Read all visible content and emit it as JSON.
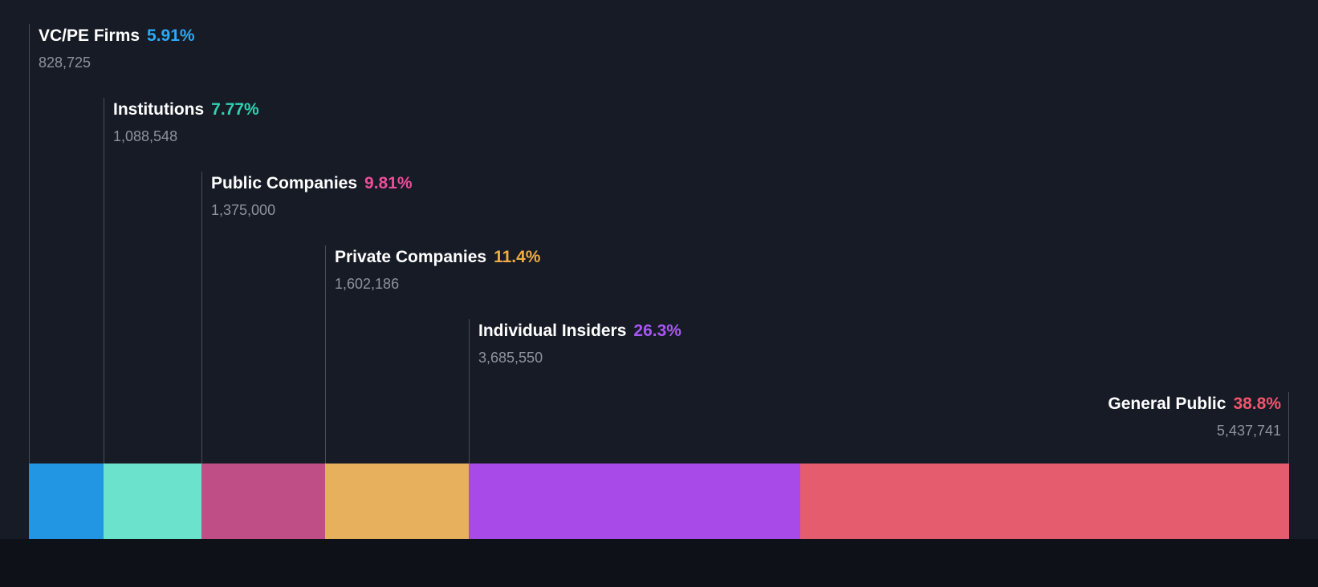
{
  "background": "#161B25",
  "chart_data": {
    "type": "bar",
    "orientation": "horizontal-stacked",
    "legend": "none",
    "items": [
      {
        "label": "VC/PE Firms",
        "pct": 5.91,
        "pct_label": "5.91%",
        "value": 828725,
        "value_label": "828,725",
        "color": "#2296E3",
        "pct_color": "#2DA9F6"
      },
      {
        "label": "Institutions",
        "pct": 7.77,
        "pct_label": "7.77%",
        "value": 1088548,
        "value_label": "1,088,548",
        "color": "#6BE3CC",
        "pct_color": "#2FD3B2"
      },
      {
        "label": "Public Companies",
        "pct": 9.81,
        "pct_label": "9.81%",
        "value": 1375000,
        "value_label": "1,375,000",
        "color": "#BF4E86",
        "pct_color": "#EE4D9B"
      },
      {
        "label": "Private Companies",
        "pct": 11.4,
        "pct_label": "11.4%",
        "value": 1602186,
        "value_label": "1,602,186",
        "color": "#E7B05C",
        "pct_color": "#F0AC44"
      },
      {
        "label": "Individual Insiders",
        "pct": 26.3,
        "pct_label": "26.3%",
        "value": 3685550,
        "value_label": "3,685,550",
        "color": "#A84AE8",
        "pct_color": "#A957F2"
      },
      {
        "label": "General Public",
        "pct": 38.8,
        "pct_label": "38.8%",
        "value": 5437741,
        "value_label": "5,437,741",
        "color": "#E55C6E",
        "pct_color": "#F2556E"
      }
    ]
  }
}
